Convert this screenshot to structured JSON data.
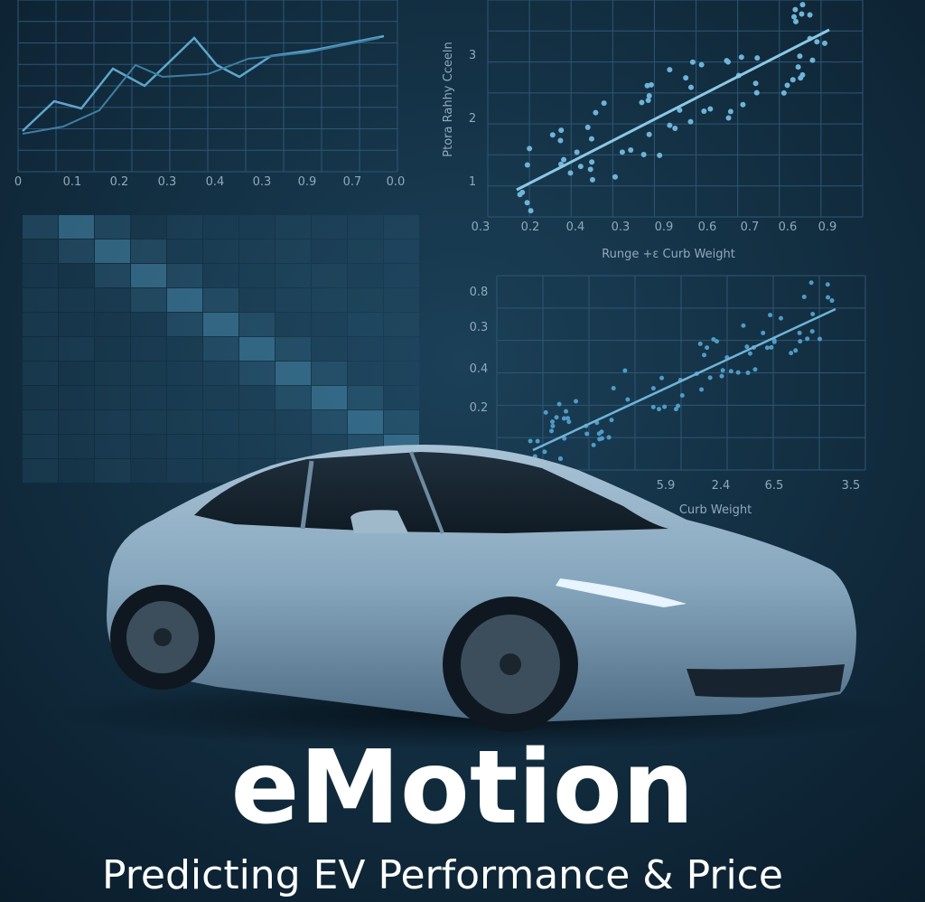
{
  "background_charts": {
    "line_chart": {
      "x_labels": [
        "0",
        "0.1",
        "0.2",
        "0.3",
        "0.4",
        "0.3",
        "0.9",
        "0.7",
        "0.0"
      ]
    },
    "scatter_top": {
      "y_axis_title": "Ptora Rahhy Cceeln",
      "y_labels": [
        "3",
        "2",
        "1"
      ],
      "x_labels": [
        "0.3",
        "0.2",
        "0.4",
        "0.3",
        "0.9",
        "0.6",
        "0.7",
        "0.6",
        "0.9"
      ],
      "x_axis_title": "Runge +ε Curb Weight"
    },
    "scatter_bottom": {
      "y_labels": [
        "0.8",
        "0.3",
        "0.4",
        "0.2"
      ],
      "x_labels": [
        "5.9",
        "2.4",
        "6.5",
        "3.5"
      ],
      "x_axis_title": "Curb Weight"
    }
  },
  "title": "eMotion",
  "subtitle": "Predicting EV Performance & Price"
}
